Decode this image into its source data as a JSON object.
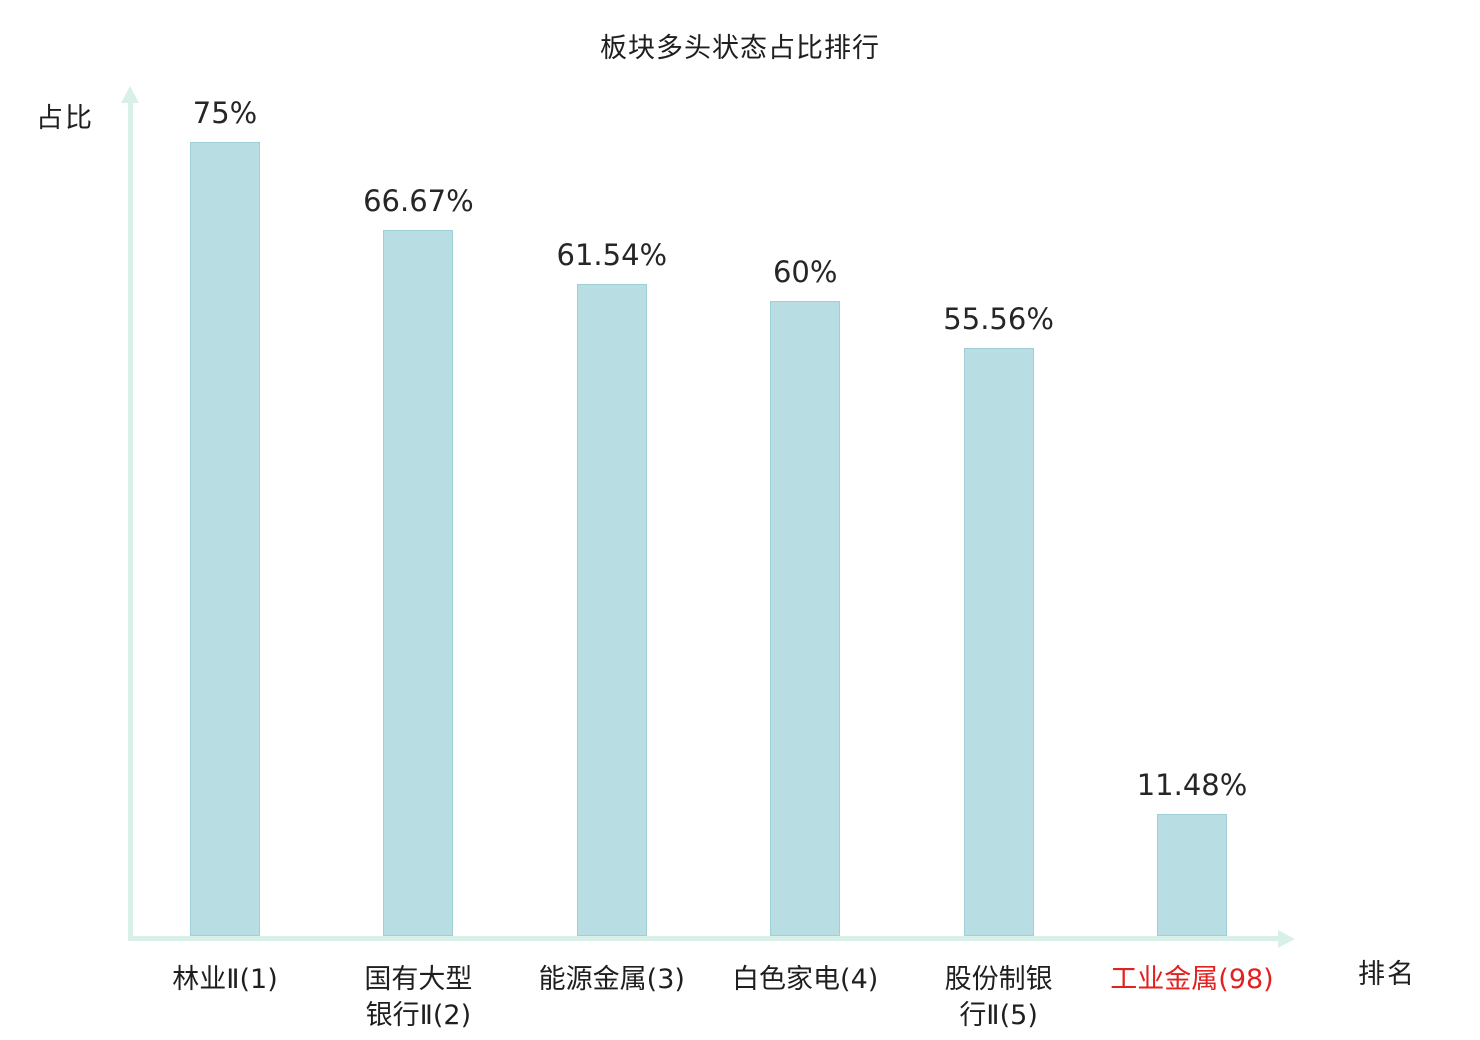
{
  "chart_data": {
    "type": "bar",
    "title": "板块多头状态占比排行",
    "ylabel": "占比",
    "xlabel": "排名",
    "ylim": [
      0,
      80
    ],
    "grid": false,
    "legend": "none",
    "categories": [
      "林业Ⅱ(1)",
      "国有大型银行Ⅱ(2)",
      "能源金属(3)",
      "白色家电(4)",
      "股份制银行Ⅱ(5)",
      "工业金属(98)"
    ],
    "category_lines": [
      [
        "林业Ⅱ(1)"
      ],
      [
        "国有大型",
        "银行Ⅱ(2)"
      ],
      [
        "能源金属(3)"
      ],
      [
        "白色家电(4)"
      ],
      [
        "股份制银",
        "行Ⅱ(5)"
      ],
      [
        "工业金属(98)"
      ]
    ],
    "values": [
      75,
      66.67,
      61.54,
      60,
      55.56,
      11.48
    ],
    "value_labels": [
      "75%",
      "66.67%",
      "61.54%",
      "60%",
      "55.56%",
      "11.48%"
    ],
    "highlight_index": 5,
    "colors": {
      "bar_fill": "#b8dde2",
      "bar_border": "#9fd0d8",
      "axis": "#d9f0e9",
      "text": "#262626",
      "highlight_text": "#e02222"
    }
  }
}
